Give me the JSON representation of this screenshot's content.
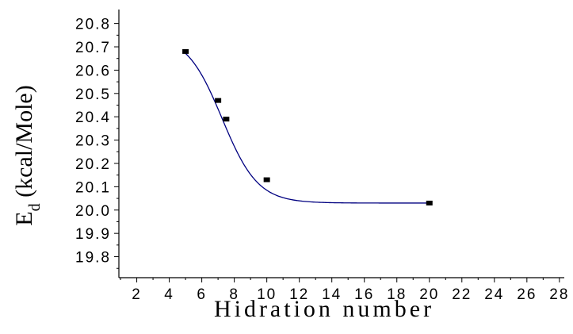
{
  "chart_data": {
    "type": "scatter",
    "xlabel": "Hidration number",
    "ylabel_main": "E",
    "ylabel_sub": "d",
    "ylabel_rest": " (kcal/Mole)",
    "xlim": [
      0.9,
      28.3
    ],
    "ylim": [
      19.71,
      20.86
    ],
    "x_ticks": [
      2,
      4,
      6,
      8,
      10,
      12,
      14,
      16,
      18,
      20,
      22,
      24,
      26,
      28
    ],
    "y_ticks": [
      19.8,
      19.9,
      20.0,
      20.1,
      20.2,
      20.3,
      20.4,
      20.5,
      20.6,
      20.7,
      20.8
    ],
    "series": [
      {
        "x": [
          5,
          7,
          7.5,
          10,
          20
        ],
        "values": [
          20.68,
          20.47,
          20.39,
          20.13,
          20.03
        ],
        "marker": "square"
      }
    ],
    "fit_curve": {
      "type": "sigmoidal",
      "color": "#000080",
      "x_range": [
        5,
        20
      ]
    },
    "colors": {
      "points": "#000000",
      "curve": "#000080",
      "axes": "#000000"
    },
    "grid": false,
    "legend": "none"
  }
}
